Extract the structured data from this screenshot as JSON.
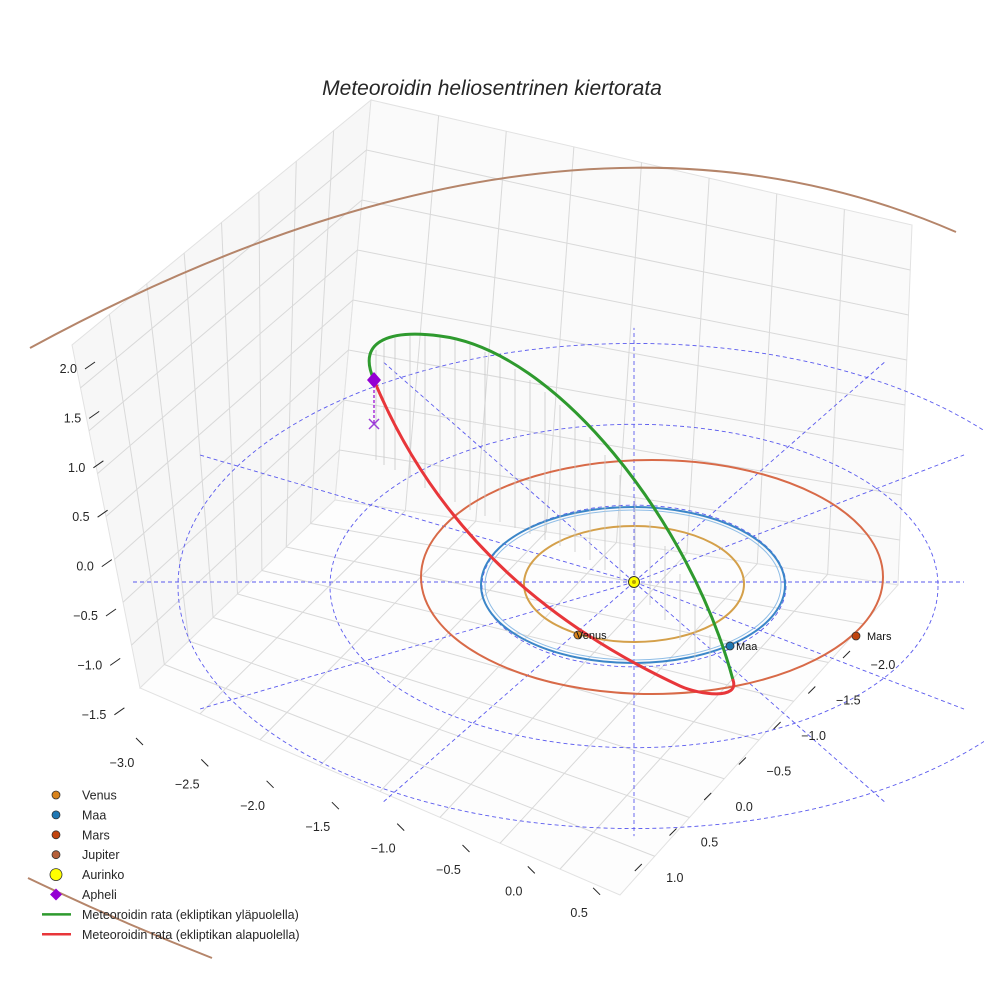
{
  "chart_data": {
    "type": "3d-line",
    "title": "Meteoroidin heliosentrinen kiertorata",
    "axes": {
      "x": {
        "ticks": [
          "−3.0",
          "−2.5",
          "−2.0",
          "−1.5",
          "−1.0",
          "−0.5",
          "0.0",
          "0.5"
        ]
      },
      "y": {
        "ticks": [
          "−2.0",
          "−1.5",
          "−1.0",
          "−0.5",
          "0.0",
          "0.5",
          "1.0"
        ]
      },
      "z": {
        "ticks": [
          "2.0",
          "1.5",
          "1.0",
          "0.5",
          "0.0",
          "−0.5",
          "−1.0",
          "−1.5"
        ]
      }
    },
    "planet_orbits": [
      {
        "name": "Venus",
        "radius_au": 0.72,
        "color": "#d4a04a"
      },
      {
        "name": "Maa",
        "radius_au": 1.0,
        "color": "#3b86c8"
      },
      {
        "name": "Mars",
        "radius_au": 1.52,
        "color": "#d86a48"
      },
      {
        "name": "Jupiter",
        "radius_au": 5.2,
        "color": "#b5856a"
      }
    ],
    "planets": [
      {
        "name": "Venus",
        "label": "Venus",
        "color": "#d9831c"
      },
      {
        "name": "Maa",
        "label": "Maa",
        "color": "#1f77b4"
      },
      {
        "name": "Mars",
        "label": "Mars",
        "color": "#c1440e"
      }
    ],
    "sun": {
      "name": "Aurinko",
      "color": "#ffff00"
    },
    "aphelion": {
      "name": "Apheli",
      "color": "#9400d3",
      "z_au": 1.9
    },
    "meteoroid_orbit": {
      "above": {
        "label": "Meteoroidin rata (ekliptikan yläpuolella)",
        "color": "#2e9a2e"
      },
      "below": {
        "label": "Meteoroidin rata (ekliptikan alapuolella)",
        "color": "#e8363a"
      }
    },
    "ecliptic_grid": {
      "circle_radii_au": [
        1,
        2,
        3
      ],
      "color": "#5555ee"
    },
    "legend": {
      "position": "bottom-left",
      "entries": [
        {
          "label": "Venus",
          "marker": "circle",
          "color": "#d9831c"
        },
        {
          "label": "Maa",
          "marker": "circle",
          "color": "#1f77b4"
        },
        {
          "label": "Mars",
          "marker": "circle",
          "color": "#c1440e"
        },
        {
          "label": "Jupiter",
          "marker": "circle",
          "color": "#b5603a"
        },
        {
          "label": "Aurinko",
          "marker": "circle-large",
          "color": "#ffff00"
        },
        {
          "label": "Apheli",
          "marker": "diamond",
          "color": "#9400d3"
        },
        {
          "label": "Meteoroidin rata (ekliptikan yläpuolella)",
          "marker": "line",
          "color": "#2e9a2e"
        },
        {
          "label": "Meteoroidin rata (ekliptikan alapuolella)",
          "marker": "line",
          "color": "#e8363a"
        }
      ]
    }
  }
}
